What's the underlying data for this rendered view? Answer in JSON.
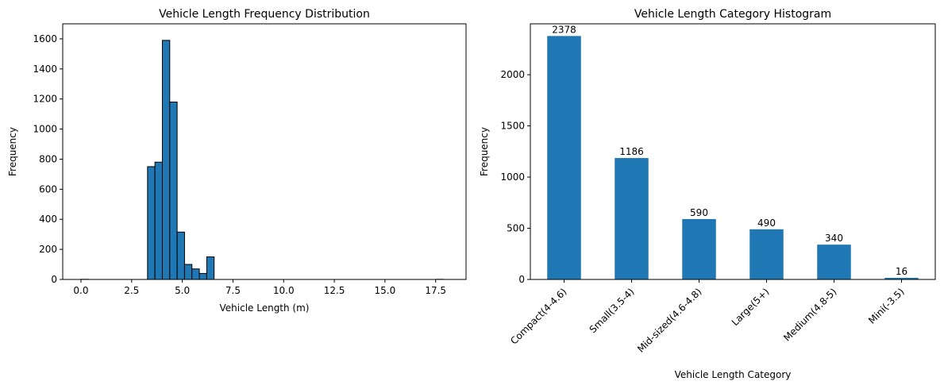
{
  "chart_data": [
    {
      "type": "bar",
      "subtype": "histogram",
      "title": "Vehicle Length Frequency Distribution",
      "xlabel": "Vehicle Length (m)",
      "ylabel": "Frequency",
      "xlim": [
        -0.9,
        19.0
      ],
      "ylim": [
        0,
        1700
      ],
      "xticks": [
        "0.0",
        "2.5",
        "5.0",
        "7.5",
        "10.0",
        "12.5",
        "15.0",
        "17.5"
      ],
      "xtick_values": [
        0,
        2.5,
        5,
        7.5,
        10,
        12.5,
        15,
        17.5
      ],
      "yticks": [
        0,
        200,
        400,
        600,
        800,
        1000,
        1200,
        1400,
        1600
      ],
      "bin_edges": [
        0.0,
        0.365,
        0.73,
        1.095,
        1.46,
        1.825,
        2.19,
        2.555,
        2.92,
        3.285,
        3.65,
        4.015,
        4.38,
        4.745,
        5.11,
        5.475,
        5.84,
        6.205,
        6.57,
        6.935,
        7.3,
        7.665,
        8.03,
        8.395,
        8.76,
        9.125,
        9.49,
        9.855,
        10.22,
        10.585,
        10.95,
        11.315,
        11.68,
        12.045,
        12.41,
        12.775,
        13.14,
        13.505,
        13.87,
        14.235,
        14.6,
        14.965,
        15.33,
        15.695,
        16.06,
        16.425,
        16.79,
        17.155,
        17.52,
        17.885,
        18.25
      ],
      "values": [
        1,
        0,
        0,
        0,
        0,
        0,
        0,
        0,
        0,
        750,
        780,
        1590,
        1180,
        315,
        100,
        70,
        40,
        150,
        0,
        0,
        0,
        0,
        0,
        0,
        0,
        0,
        0,
        0,
        0,
        0,
        0,
        0,
        0,
        0,
        0,
        0,
        0,
        0,
        0,
        0,
        0,
        0,
        0,
        0,
        0,
        0,
        0,
        0,
        1,
        0
      ],
      "color": "#1f77b4",
      "edgecolor": "#000000",
      "grid": false
    },
    {
      "type": "bar",
      "title": "Vehicle Length Category Histogram",
      "xlabel": "Vehicle Length Category",
      "ylabel": "Frequency",
      "categories": [
        "Compact(4-4.6)",
        "Small(3.5-4)",
        "Mid-sized(4.6-4.8)",
        "Large(5+)",
        "Medium(4.8-5)",
        "Mini(-3.5)"
      ],
      "values": [
        2378,
        1186,
        590,
        490,
        340,
        16
      ],
      "data_labels": [
        "2378",
        "1186",
        "590",
        "490",
        "340",
        "16"
      ],
      "ylim": [
        0,
        2497
      ],
      "yticks": [
        0,
        500,
        1000,
        1500,
        2000
      ],
      "color": "#1f77b4",
      "grid": false
    }
  ]
}
